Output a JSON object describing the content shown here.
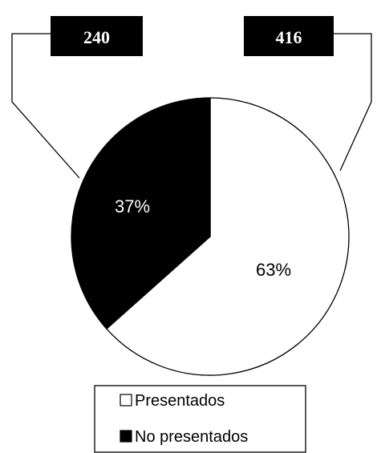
{
  "chart_data": {
    "type": "pie",
    "slices": [
      {
        "name": "Presentados",
        "value": 416,
        "percent_label": "63%",
        "color": "#ffffff"
      },
      {
        "name": "No presentados",
        "value": 240,
        "percent_label": "37%",
        "color": "#000000"
      }
    ],
    "legend_position": "bottom",
    "callout_labels": [
      "240",
      "416"
    ]
  }
}
